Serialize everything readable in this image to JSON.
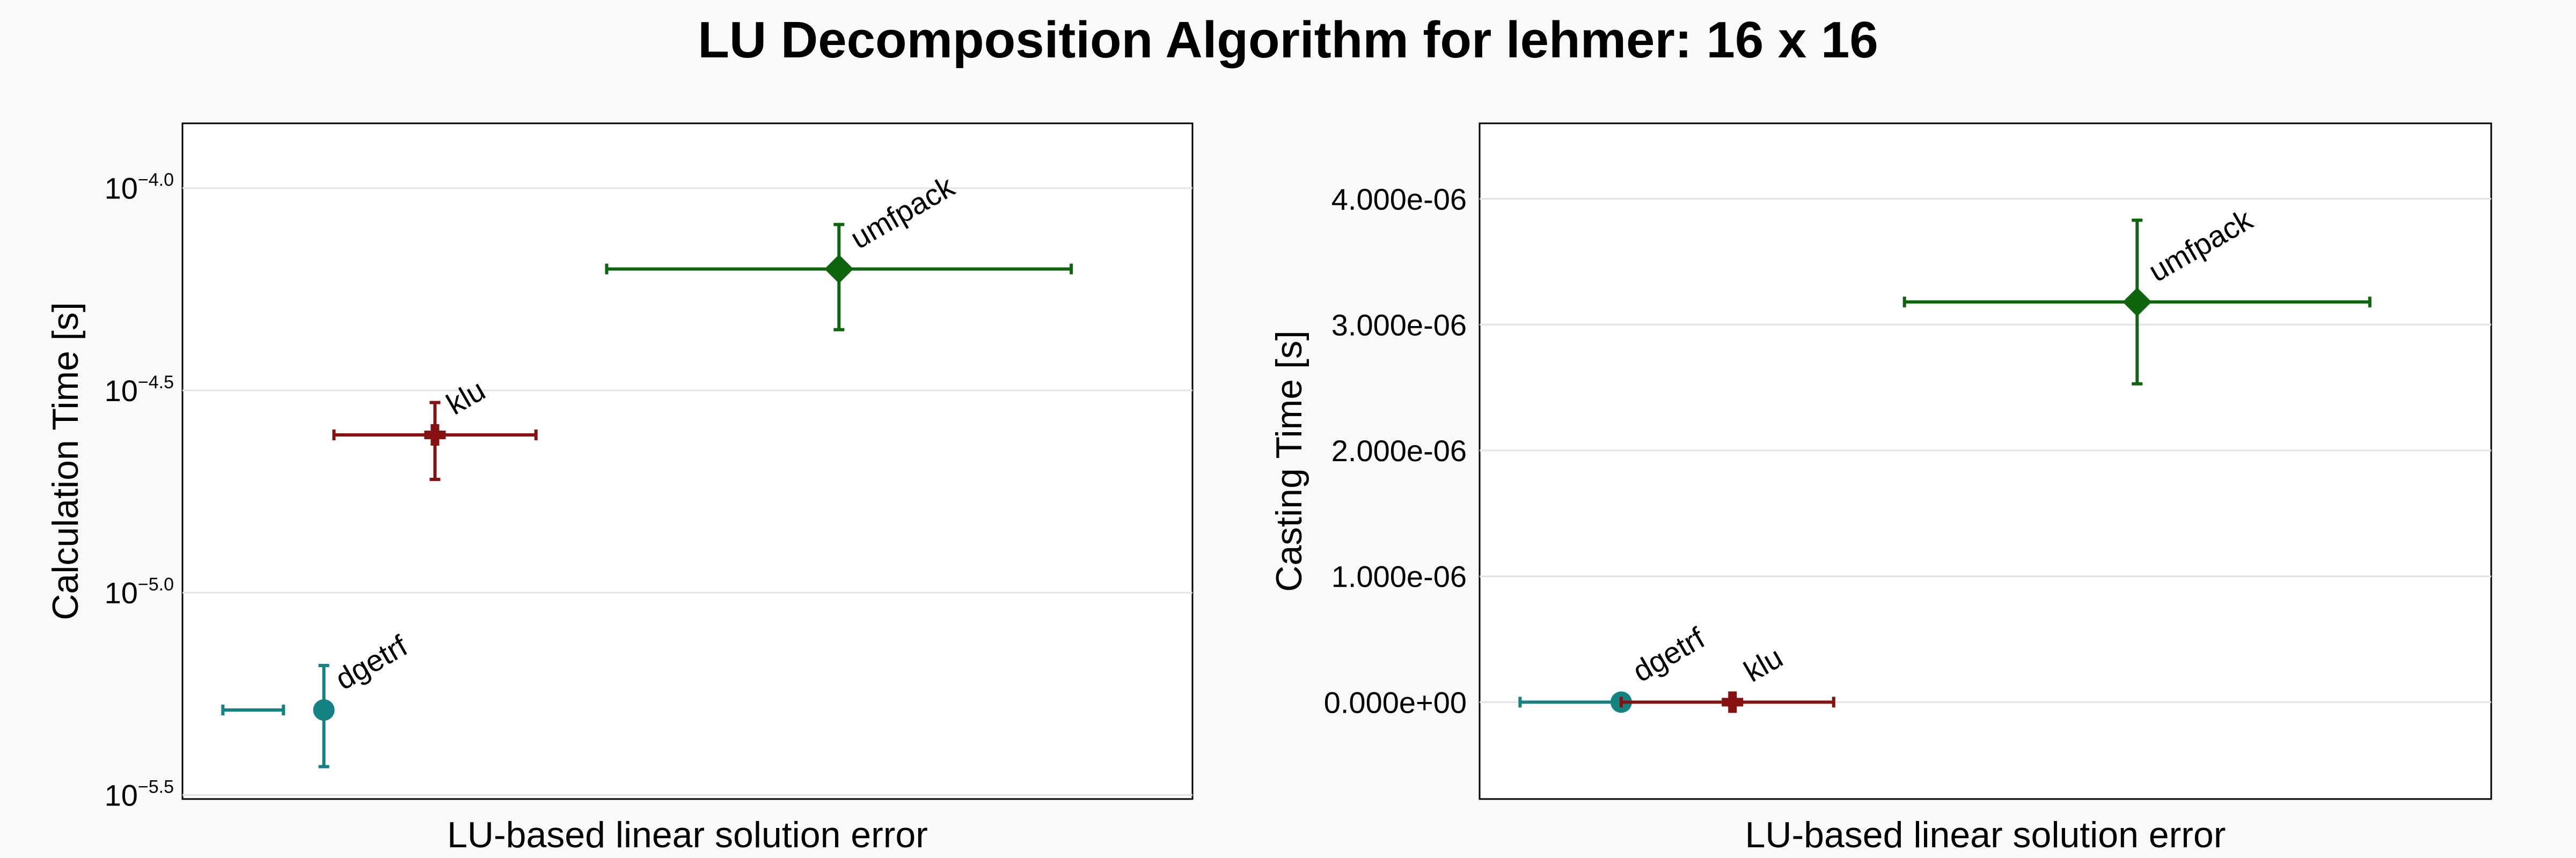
{
  "title": "LU Decomposition Algorithm for lehmer: 16 x 16",
  "colors": {
    "dgetrf": "#158282",
    "klu": "#861111",
    "umfpack": "#0e650e"
  },
  "chart_data": [
    {
      "type": "scatter",
      "name": "calculation",
      "xlabel": "LU-based linear solution error",
      "ylabel": "Calculation Time [s]",
      "yscale": "log10",
      "ylim_exponent": [
        -5.51,
        -4.0
      ],
      "xlim": [
        0,
        10
      ],
      "yticks": [
        {
          "base": "10",
          "exp": "−4.0",
          "value": -4.0
        },
        {
          "base": "10",
          "exp": "−4.5",
          "value": -4.5
        },
        {
          "base": "10",
          "exp": "−5.0",
          "value": -5.0
        },
        {
          "base": "10",
          "exp": "−5.5",
          "value": -5.5
        }
      ],
      "grid": true,
      "series": [
        {
          "name": "dgetrf",
          "marker": "circle",
          "x": 1.4,
          "x_err": [
            0.4,
            1.0
          ],
          "y_exponent": -5.29,
          "y_err_exponent": [
            -5.43,
            -5.18
          ]
        },
        {
          "name": "klu",
          "marker": "cross",
          "x": 2.5,
          "x_err": [
            1.5,
            3.5
          ],
          "y_exponent": -4.61,
          "y_err_exponent": [
            -4.72,
            -4.53
          ]
        },
        {
          "name": "umfpack",
          "marker": "diamond",
          "x": 6.5,
          "x_err": [
            4.2,
            8.8
          ],
          "y_exponent": -4.2,
          "y_err_exponent": [
            -4.35,
            -4.09
          ]
        }
      ]
    },
    {
      "type": "scatter",
      "name": "casting",
      "xlabel": "LU-based linear solution error",
      "ylabel": "Casting Time [s]",
      "yscale": "linear",
      "ylim": [
        -7.7e-07,
        4.6e-06
      ],
      "xlim": [
        0,
        10
      ],
      "yticks": [
        {
          "label": "4.000e-06",
          "value": 4e-06
        },
        {
          "label": "3.000e-06",
          "value": 3e-06
        },
        {
          "label": "2.000e-06",
          "value": 2e-06
        },
        {
          "label": "1.000e-06",
          "value": 1e-06
        },
        {
          "label": "0.000e+00",
          "value": 0.0
        }
      ],
      "grid": true,
      "series": [
        {
          "name": "dgetrf",
          "marker": "circle",
          "x": 1.4,
          "x_err": [
            0.4,
            1.4
          ],
          "y": 0.0,
          "y_err": [
            0.0,
            0.0
          ]
        },
        {
          "name": "klu",
          "marker": "cross",
          "x": 2.5,
          "x_err": [
            1.4,
            3.5
          ],
          "y": 0.0,
          "y_err": [
            0.0,
            0.0
          ]
        },
        {
          "name": "umfpack",
          "marker": "diamond",
          "x": 6.5,
          "x_err": [
            4.2,
            8.8
          ],
          "y": 3.18e-06,
          "y_err": [
            2.53e-06,
            3.83e-06
          ]
        }
      ]
    }
  ]
}
